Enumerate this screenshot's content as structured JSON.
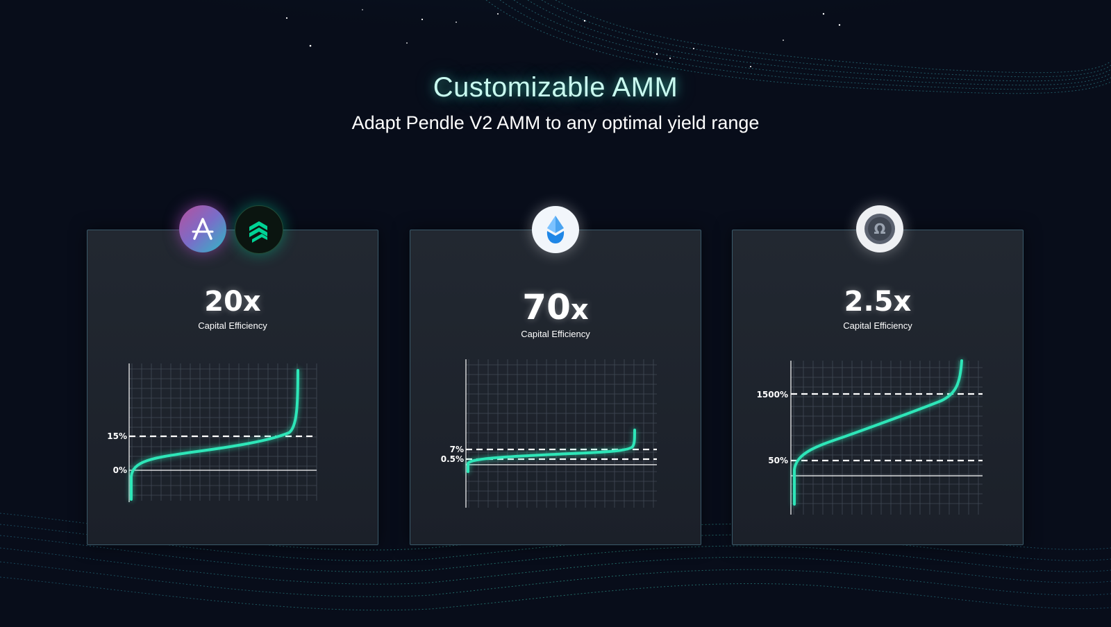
{
  "header": {
    "title": "Customizable AMM",
    "subtitle": "Adapt Pendle V2 AMM to any optimal yield range"
  },
  "colors": {
    "curve": "#2ee6b8",
    "glow": "#47f0d2",
    "background": "#080d1a"
  },
  "cards": [
    {
      "multiplier": "20",
      "suffix": "x",
      "caption": "Capital Efficiency",
      "icons": [
        "aave-icon",
        "compound-icon"
      ],
      "labels": [
        "15%",
        "0%"
      ]
    },
    {
      "multiplier": "70",
      "suffix": "x",
      "caption": "Capital Efficiency",
      "icons": [
        "lido-icon"
      ],
      "labels": [
        "7%",
        "0.5%"
      ]
    },
    {
      "multiplier": "2.5",
      "suffix": "x",
      "caption": "Capital Efficiency",
      "icons": [
        "olympus-icon"
      ],
      "labels": [
        "1500%",
        "50%"
      ]
    }
  ]
}
